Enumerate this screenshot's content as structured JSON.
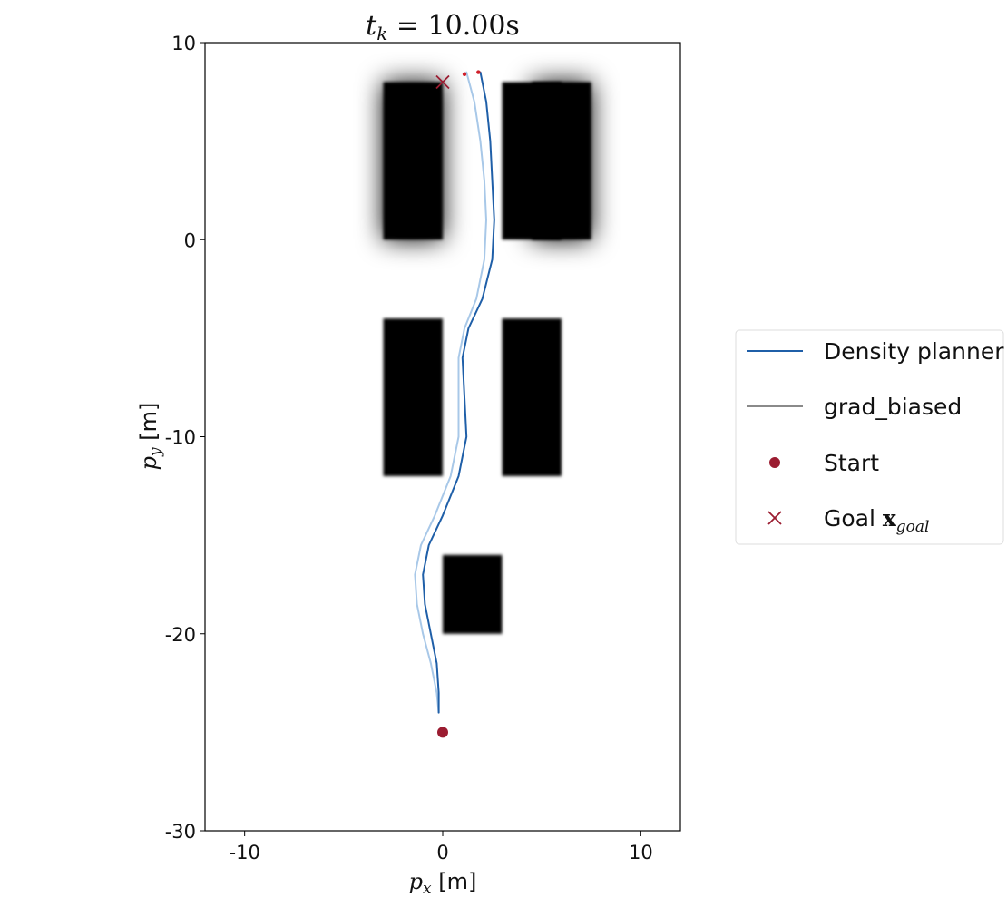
{
  "chart_data": {
    "type": "line",
    "title": "t_k = 10.00s",
    "title_parts": {
      "base": "t",
      "sub": "k",
      "rest": " = 10.00s"
    },
    "xlabel": "p_x [m]",
    "xlabel_parts": {
      "base": "p",
      "sub": "x",
      "rest": " [m]"
    },
    "ylabel": "p_y [m]",
    "ylabel_parts": {
      "base": "p",
      "sub": "y",
      "rest": " [m]"
    },
    "xlim": [
      -12,
      12
    ],
    "ylim": [
      -30,
      10
    ],
    "xticks": [
      -10,
      0,
      10
    ],
    "xtick_labels": [
      "-10",
      "0",
      "10"
    ],
    "yticks": [
      10,
      0,
      -10,
      -20,
      -30
    ],
    "ytick_labels": [
      "10",
      "0",
      "-10",
      "-20",
      "-30"
    ],
    "grid": false,
    "legend_placement": "outside-right",
    "obstacles": [
      {
        "x": [
          -3,
          0
        ],
        "y": [
          0,
          8
        ],
        "blur": "high"
      },
      {
        "x": [
          3,
          6
        ],
        "y": [
          0,
          8
        ],
        "blur": "low"
      },
      {
        "x": [
          4.5,
          7.5
        ],
        "y": [
          0,
          8
        ],
        "blur": "high"
      },
      {
        "x": [
          -3,
          0
        ],
        "y": [
          -12,
          -4
        ],
        "blur": "low"
      },
      {
        "x": [
          3,
          6
        ],
        "y": [
          -12,
          -4
        ],
        "blur": "low"
      },
      {
        "x": [
          0,
          3
        ],
        "y": [
          -20,
          -16
        ],
        "blur": "low"
      }
    ],
    "series": [
      {
        "name": "Density planner",
        "color": "#1f5fa8",
        "x": [
          -0.2,
          -0.2,
          -0.3,
          -0.6,
          -0.9,
          -1.0,
          -0.7,
          0.0,
          0.8,
          1.2,
          1.1,
          1.0,
          1.3,
          2.0,
          2.5,
          2.6,
          2.5,
          2.4,
          2.2,
          1.9
        ],
        "y": [
          -24.0,
          -23.0,
          -21.5,
          -20.0,
          -18.5,
          -17.0,
          -15.5,
          -14.0,
          -12.0,
          -10.0,
          -8.0,
          -6.0,
          -4.5,
          -3.0,
          -1.0,
          1.0,
          3.0,
          5.0,
          7.0,
          8.5
        ]
      },
      {
        "name": "grad_biased",
        "color": "#a8c8e8",
        "x": [
          -0.2,
          -0.3,
          -0.6,
          -1.0,
          -1.3,
          -1.4,
          -1.1,
          -0.4,
          0.4,
          0.8,
          0.8,
          0.8,
          1.1,
          1.7,
          2.1,
          2.2,
          2.1,
          1.9,
          1.6,
          1.2
        ],
        "y": [
          -24.0,
          -23.0,
          -21.5,
          -20.0,
          -18.5,
          -17.0,
          -15.5,
          -14.0,
          -12.0,
          -10.0,
          -8.0,
          -6.0,
          -4.5,
          -3.0,
          -1.0,
          1.0,
          3.0,
          5.0,
          7.0,
          8.5
        ]
      }
    ],
    "end_markers": [
      {
        "x": 1.1,
        "y": 8.4,
        "color": "#d0202a"
      },
      {
        "x": 1.8,
        "y": 8.5,
        "color": "#d0202a"
      }
    ],
    "start": {
      "name": "Start",
      "x": 0,
      "y": -25,
      "color": "#9b1c31"
    },
    "goal": {
      "name": "Goal",
      "label_base": "Goal ",
      "label_math": "x",
      "label_sub": "goal",
      "x": 0,
      "y": 8,
      "color": "#9b1c31"
    },
    "legend": [
      {
        "label": "Density planner",
        "kind": "line",
        "color": "#1f5fa8"
      },
      {
        "label": "grad_biased",
        "kind": "line",
        "color": "#8a8a8a"
      },
      {
        "label": "Start",
        "kind": "dot",
        "color": "#9b1c31"
      },
      {
        "label": "Goal x_goal",
        "kind": "cross",
        "color": "#9b1c31"
      }
    ]
  }
}
